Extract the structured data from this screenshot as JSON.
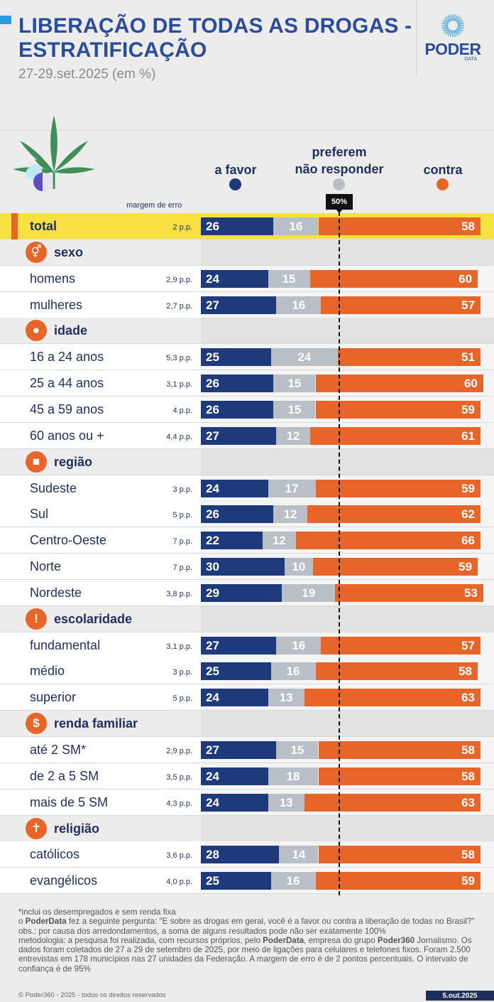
{
  "header": {
    "title_line1": "LIBERAÇÃO DE TODAS AS DROGAS -",
    "title_line2": "ESTRATIFICAÇÃO",
    "subtitle": "27-29.set.2025 (em %)",
    "logo_text": "PODER",
    "logo_sub": "DATA"
  },
  "legend": {
    "favor": "a favor",
    "nr_line1": "preferem",
    "nr_line2": "não responder",
    "contra": "contra",
    "margin_header": "margem de erro",
    "fifty_badge": "50%"
  },
  "colors": {
    "favor": "#1e3a7a",
    "nao_responder": "#b9bfc6",
    "contra": "#e8652a",
    "highlight": "#f7e040",
    "title": "#2b4c9b"
  },
  "chart_data": {
    "type": "bar",
    "stacked": true,
    "orientation": "horizontal",
    "title": "LIBERAÇÃO DE TODAS AS DROGAS - ESTRATIFICAÇÃO",
    "subtitle": "27-29.set.2025 (em %)",
    "series_names": [
      "a favor",
      "preferem não responder",
      "contra"
    ],
    "reference_line": 50,
    "rows": [
      {
        "kind": "total",
        "label": "total",
        "margin": "2 p.p.",
        "values": [
          26,
          16,
          58
        ]
      },
      {
        "kind": "section",
        "label": "sexo",
        "icon": "gender-icon"
      },
      {
        "kind": "data",
        "label": "homens",
        "margin": "2,9 p.p.",
        "values": [
          24,
          15,
          60
        ]
      },
      {
        "kind": "data",
        "label": "mulheres",
        "margin": "2,7 p.p.",
        "values": [
          27,
          16,
          57
        ]
      },
      {
        "kind": "section",
        "label": "idade",
        "icon": "person-icon"
      },
      {
        "kind": "data",
        "label": "16 a 24 anos",
        "margin": "5,3 p.p.",
        "values": [
          25,
          24,
          51
        ]
      },
      {
        "kind": "data",
        "label": "25 a 44 anos",
        "margin": "3,1 p.p.",
        "values": [
          26,
          15,
          60
        ]
      },
      {
        "kind": "data",
        "label": "45 a 59 anos",
        "margin": "4 p.p.",
        "values": [
          26,
          15,
          59
        ]
      },
      {
        "kind": "data",
        "label": "60 anos ou +",
        "margin": "4,4 p.p.",
        "values": [
          27,
          12,
          61
        ]
      },
      {
        "kind": "section",
        "label": "região",
        "icon": "brazil-map-icon"
      },
      {
        "kind": "data",
        "label": "Sudeste",
        "margin": "3 p.p.",
        "values": [
          24,
          17,
          59
        ]
      },
      {
        "kind": "data",
        "label": "Sul",
        "margin": "5 p.p.",
        "values": [
          26,
          12,
          62
        ]
      },
      {
        "kind": "data",
        "label": "Centro-Oeste",
        "margin": "7 p.p.",
        "values": [
          22,
          12,
          66
        ]
      },
      {
        "kind": "data",
        "label": "Norte",
        "margin": "7 p.p.",
        "values": [
          30,
          10,
          59
        ]
      },
      {
        "kind": "data",
        "label": "Nordeste",
        "margin": "3,8 p.p.",
        "values": [
          29,
          19,
          53
        ]
      },
      {
        "kind": "section",
        "label": "escolaridade",
        "icon": "exclamation-icon"
      },
      {
        "kind": "data",
        "label": "fundamental",
        "margin": "3,1 p.p.",
        "values": [
          27,
          16,
          57
        ]
      },
      {
        "kind": "data",
        "label": "médio",
        "margin": "3 p.p.",
        "values": [
          25,
          16,
          58
        ]
      },
      {
        "kind": "data",
        "label": "superior",
        "margin": "5 p.p.",
        "values": [
          24,
          13,
          63
        ]
      },
      {
        "kind": "section",
        "label": "renda familiar",
        "icon": "dollar-icon"
      },
      {
        "kind": "data",
        "label": "até 2 SM*",
        "margin": "2,9 p.p.",
        "values": [
          27,
          15,
          58
        ]
      },
      {
        "kind": "data",
        "label": "de 2 a 5 SM",
        "margin": "3,5 p.p.",
        "values": [
          24,
          18,
          58
        ]
      },
      {
        "kind": "data",
        "label": "mais de 5 SM",
        "margin": "4,3 p.p.",
        "values": [
          24,
          13,
          63
        ]
      },
      {
        "kind": "section",
        "label": "religião",
        "icon": "cross-icon"
      },
      {
        "kind": "data",
        "label": "católicos",
        "margin": "3,6 p.p.",
        "values": [
          28,
          14,
          58
        ]
      },
      {
        "kind": "data",
        "label": "evangélicos",
        "margin": "4,0 p.p.",
        "values": [
          25,
          16,
          59
        ]
      }
    ]
  },
  "footnotes": {
    "note1": "*inclui os desempregados e sem renda fixa",
    "note2_brand": "PoderData",
    "note2_pre": "o ",
    "note2_rest": " fez a seguinte pergunta: \"E sobre as drogas em geral, você é a favor ou contra a liberação de todas no Brasil?\"",
    "note3": "obs.: por causa dos arredondamentos, a soma de alguns resultados pode não ser exatamente 100%",
    "note4_a": "metodologia: a pesquisa foi realizada, com recursos próprios, pelo ",
    "note4_brand1": "PoderData",
    "note4_b": ", empresa do grupo ",
    "note4_brand2": "Poder360",
    "note4_c": " Jornalismo. Os dados foram coletados de 27 a 29 de setembro de 2025, por meio de ligações para celulares e telefones fixos. Foram 2.500 entrevistas em 178 municípios nas 27 unidades da Federação. A margem de erro é de 2 pontos percentuais. O intervalo de confiança é de 95%",
    "copyright": "© Poder360 - 2025 - todos os direitos reservados",
    "date": "5.out.2025"
  }
}
